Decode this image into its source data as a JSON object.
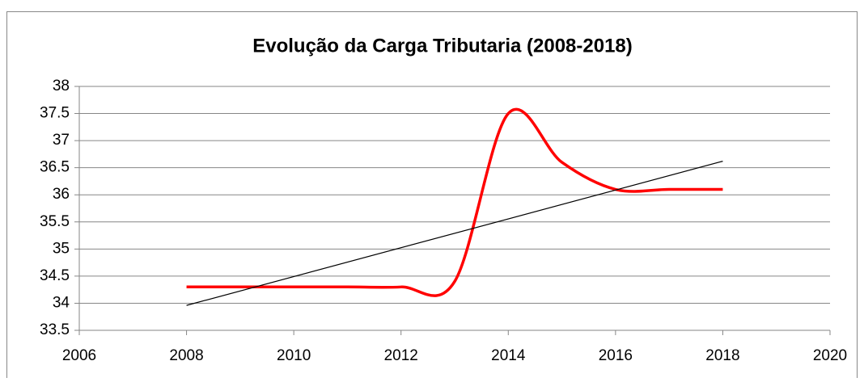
{
  "chart_data": {
    "type": "line",
    "title": "Evolução da Carga Tributaria (2008-2018)",
    "x": [
      2008,
      2009,
      2010,
      2011,
      2012,
      2013,
      2014,
      2015,
      2016,
      2017,
      2018
    ],
    "series": [
      {
        "color": "#ff0000",
        "values": [
          34.3,
          34.3,
          34.3,
          34.3,
          34.3,
          34.4,
          37.5,
          36.6,
          36.1,
          36.1,
          36.1
        ]
      }
    ],
    "trendline": {
      "x": [
        2008,
        2018
      ],
      "values": [
        33.96,
        36.62
      ],
      "color": "#000000"
    },
    "xlim": [
      2006,
      2020
    ],
    "xticks": [
      2006,
      2008,
      2010,
      2012,
      2014,
      2016,
      2018,
      2020
    ],
    "ylim": [
      33.5,
      38
    ],
    "yticks": [
      33.5,
      34,
      34.5,
      35,
      35.5,
      36,
      36.5,
      37,
      37.5,
      38
    ],
    "grid": true,
    "smooth": true
  }
}
